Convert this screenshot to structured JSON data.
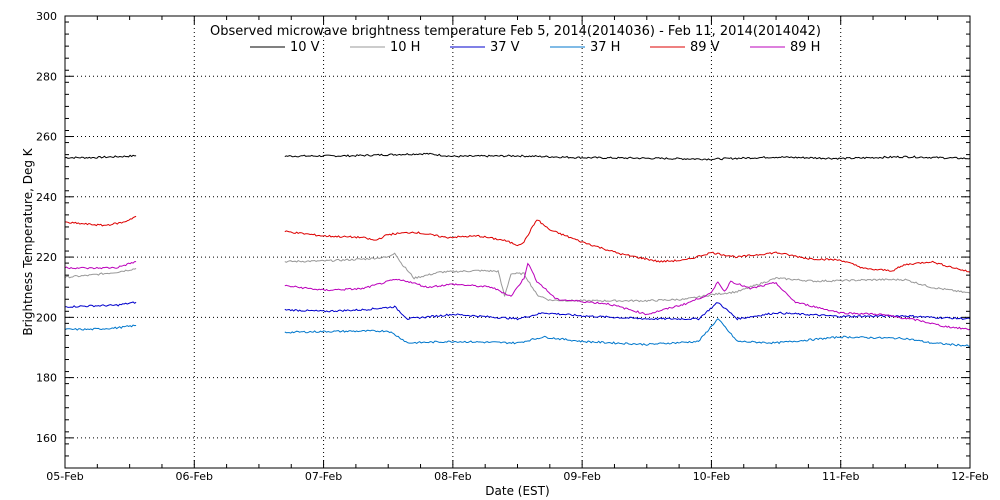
{
  "chart_data": {
    "type": "line",
    "title": "Observed microwave brightness temperature Feb  5, 2014(2014036) - Feb 11, 2014(2014042)",
    "xlabel": "Date (EST)",
    "ylabel": "Brightness Temperature, Deg K",
    "x_ticks": [
      "05-Feb",
      "06-Feb",
      "07-Feb",
      "08-Feb",
      "09-Feb",
      "10-Feb",
      "11-Feb",
      "12-Feb"
    ],
    "xlim": [
      0,
      7
    ],
    "ylim": [
      150,
      300
    ],
    "y_ticks": [
      160,
      180,
      200,
      220,
      240,
      260,
      280,
      300
    ],
    "grid": true,
    "legend_position": "top",
    "series": [
      {
        "name": "10 V",
        "color": "#000000",
        "segments": [
          [
            [
              0,
              253
            ],
            [
              0.2,
              253
            ],
            [
              0.4,
              253.3
            ],
            [
              0.55,
              253.6
            ]
          ],
          [
            [
              1.7,
              253.5
            ],
            [
              2.2,
              253.6
            ],
            [
              2.6,
              254.1
            ],
            [
              2.8,
              254.3
            ],
            [
              3.0,
              253.4
            ],
            [
              3.5,
              253.6
            ],
            [
              4.0,
              253.0
            ],
            [
              4.5,
              252.8
            ],
            [
              5.0,
              252.5
            ],
            [
              5.5,
              253.2
            ],
            [
              6.0,
              252.7
            ],
            [
              6.5,
              253.3
            ],
            [
              7.0,
              252.7
            ]
          ]
        ]
      },
      {
        "name": "10 H",
        "color": "#999999",
        "segments": [
          [
            [
              0,
              213.3
            ],
            [
              0.2,
              214
            ],
            [
              0.4,
              215
            ],
            [
              0.55,
              216.2
            ]
          ],
          [
            [
              1.7,
              218.5
            ],
            [
              2.0,
              218.7
            ],
            [
              2.3,
              219.3
            ],
            [
              2.5,
              220
            ],
            [
              2.55,
              221.5
            ],
            [
              2.6,
              218
            ],
            [
              2.7,
              213
            ],
            [
              2.9,
              215
            ],
            [
              3.2,
              215.5
            ],
            [
              3.35,
              215.3
            ],
            [
              3.4,
              207
            ],
            [
              3.45,
              214.5
            ],
            [
              3.55,
              214.5
            ],
            [
              3.65,
              207.5
            ],
            [
              3.75,
              205.7
            ],
            [
              4.0,
              205.5
            ],
            [
              4.5,
              205.5
            ],
            [
              4.8,
              206
            ],
            [
              5.0,
              207.5
            ],
            [
              5.2,
              208.5
            ],
            [
              5.5,
              213
            ],
            [
              5.8,
              212
            ],
            [
              6.0,
              212.2
            ],
            [
              6.3,
              212.5
            ],
            [
              6.5,
              212.5
            ],
            [
              6.7,
              210
            ],
            [
              7.0,
              208
            ]
          ]
        ]
      },
      {
        "name": "37 V",
        "color": "#0000cc",
        "segments": [
          [
            [
              0,
              203.5
            ],
            [
              0.2,
              203.8
            ],
            [
              0.4,
              204
            ],
            [
              0.55,
              205
            ]
          ],
          [
            [
              1.7,
              202.5
            ],
            [
              2.0,
              202
            ],
            [
              2.3,
              202.5
            ],
            [
              2.55,
              203.5
            ],
            [
              2.65,
              199.5
            ],
            [
              3.0,
              201
            ],
            [
              3.5,
              199.5
            ],
            [
              3.7,
              201.5
            ],
            [
              4.0,
              200.5
            ],
            [
              4.5,
              199.5
            ],
            [
              4.9,
              199.5
            ],
            [
              5.05,
              205
            ],
            [
              5.2,
              199.5
            ],
            [
              5.5,
              201.5
            ],
            [
              6.0,
              200.3
            ],
            [
              6.5,
              200.5
            ],
            [
              6.7,
              200
            ],
            [
              7.0,
              199.5
            ]
          ]
        ]
      },
      {
        "name": "37 H",
        "color": "#0077cc",
        "segments": [
          [
            [
              0,
              196
            ],
            [
              0.2,
              196
            ],
            [
              0.4,
              196.5
            ],
            [
              0.55,
              197.3
            ]
          ],
          [
            [
              1.7,
              195
            ],
            [
              2.0,
              195.3
            ],
            [
              2.5,
              195.5
            ],
            [
              2.6,
              193
            ],
            [
              2.65,
              191.5
            ],
            [
              3.0,
              192
            ],
            [
              3.5,
              191.5
            ],
            [
              3.7,
              193.5
            ],
            [
              4.0,
              192
            ],
            [
              4.5,
              191
            ],
            [
              4.9,
              192
            ],
            [
              5.05,
              199.5
            ],
            [
              5.2,
              192
            ],
            [
              5.5,
              191.5
            ],
            [
              6.0,
              193.5
            ],
            [
              6.5,
              193
            ],
            [
              6.7,
              191.5
            ],
            [
              7.0,
              190.5
            ]
          ]
        ]
      },
      {
        "name": "89 V",
        "color": "#dd0000",
        "segments": [
          [
            [
              0,
              231.5
            ],
            [
              0.15,
              231
            ],
            [
              0.3,
              230.5
            ],
            [
              0.45,
              231.5
            ],
            [
              0.55,
              233.5
            ]
          ],
          [
            [
              1.7,
              228.5
            ],
            [
              2.0,
              227
            ],
            [
              2.3,
              226.5
            ],
            [
              2.4,
              225.5
            ],
            [
              2.5,
              227.5
            ],
            [
              2.7,
              228.3
            ],
            [
              2.95,
              226.5
            ],
            [
              3.2,
              227
            ],
            [
              3.4,
              225.5
            ],
            [
              3.5,
              224
            ],
            [
              3.55,
              225
            ],
            [
              3.65,
              232.5
            ],
            [
              3.75,
              229
            ],
            [
              4.0,
              225
            ],
            [
              4.3,
              221
            ],
            [
              4.6,
              218.5
            ],
            [
              4.8,
              219
            ],
            [
              5.0,
              221.5
            ],
            [
              5.2,
              220
            ],
            [
              5.5,
              221.5
            ],
            [
              5.75,
              219.5
            ],
            [
              6.0,
              219
            ],
            [
              6.2,
              216
            ],
            [
              6.4,
              215.5
            ],
            [
              6.5,
              217.5
            ],
            [
              6.7,
              218.5
            ],
            [
              7.0,
              215
            ]
          ]
        ]
      },
      {
        "name": "89 H",
        "color": "#bb00bb",
        "segments": [
          [
            [
              0,
              216.5
            ],
            [
              0.2,
              216.3
            ],
            [
              0.4,
              216.5
            ],
            [
              0.55,
              218.5
            ]
          ],
          [
            [
              1.7,
              210.5
            ],
            [
              2.0,
              209
            ],
            [
              2.3,
              209.5
            ],
            [
              2.55,
              212.5
            ],
            [
              2.65,
              212
            ],
            [
              2.8,
              210
            ],
            [
              3.0,
              211
            ],
            [
              3.3,
              210
            ],
            [
              3.45,
              207
            ],
            [
              3.55,
              213
            ],
            [
              3.58,
              218
            ],
            [
              3.65,
              212
            ],
            [
              3.8,
              206
            ],
            [
              4.2,
              204.5
            ],
            [
              4.5,
              201
            ],
            [
              4.8,
              204.5
            ],
            [
              5.0,
              208
            ],
            [
              5.05,
              212
            ],
            [
              5.1,
              208.5
            ],
            [
              5.15,
              212
            ],
            [
              5.3,
              209.5
            ],
            [
              5.5,
              211.5
            ],
            [
              5.55,
              209
            ],
            [
              5.65,
              205
            ],
            [
              6.0,
              201.5
            ],
            [
              6.3,
              201
            ],
            [
              6.6,
              199
            ],
            [
              6.8,
              197
            ],
            [
              7.0,
              196
            ]
          ]
        ]
      }
    ]
  }
}
